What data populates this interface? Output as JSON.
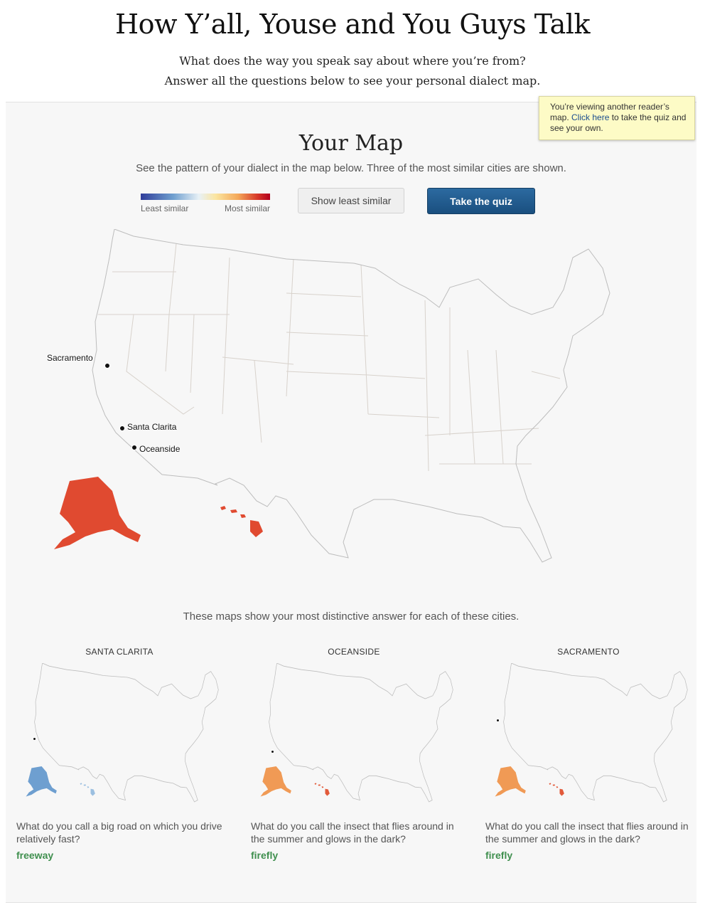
{
  "header": {
    "title": "How Y’all, Youse and You Guys Talk",
    "intro_line1": "What does the way you speak say about where you’re from?",
    "intro_line2": "Answer all the questions below to see your personal dialect map."
  },
  "tooltip": {
    "before": "You’re viewing another reader’s map. ",
    "link": "Click here",
    "after": " to take the quiz and see your own."
  },
  "your_map": {
    "title": "Your Map",
    "subtitle": "See the pattern of your dialect in the map below. Three of the most similar cities are shown.",
    "legend": {
      "least": "Least similar",
      "most": "Most similar"
    },
    "show_least_button": "Show least similar",
    "take_quiz_button": "Take the quiz",
    "cities": [
      "Sacramento",
      "Santa Clarita",
      "Oceanside"
    ]
  },
  "colors": {
    "most_similar": "#b3001e",
    "least_similar": "#2f3d9a",
    "answer": "#3f8f4e",
    "button_primary": "#1a4f7f"
  },
  "distinctive": {
    "subtitle": "These maps show your most distinctive answer for each of these cities.",
    "cities": [
      {
        "name": "SANTA CLARITA",
        "question": "What do you call a big road on which you drive relatively fast?",
        "answer": "freeway"
      },
      {
        "name": "OCEANSIDE",
        "question": "What do you call the insect that flies around in the summer and glows in the dark?",
        "answer": "firefly"
      },
      {
        "name": "SACRAMENTO",
        "question": "What do you call the insect that flies around in the summer and glows in the dark?",
        "answer": "firefly"
      }
    ]
  }
}
